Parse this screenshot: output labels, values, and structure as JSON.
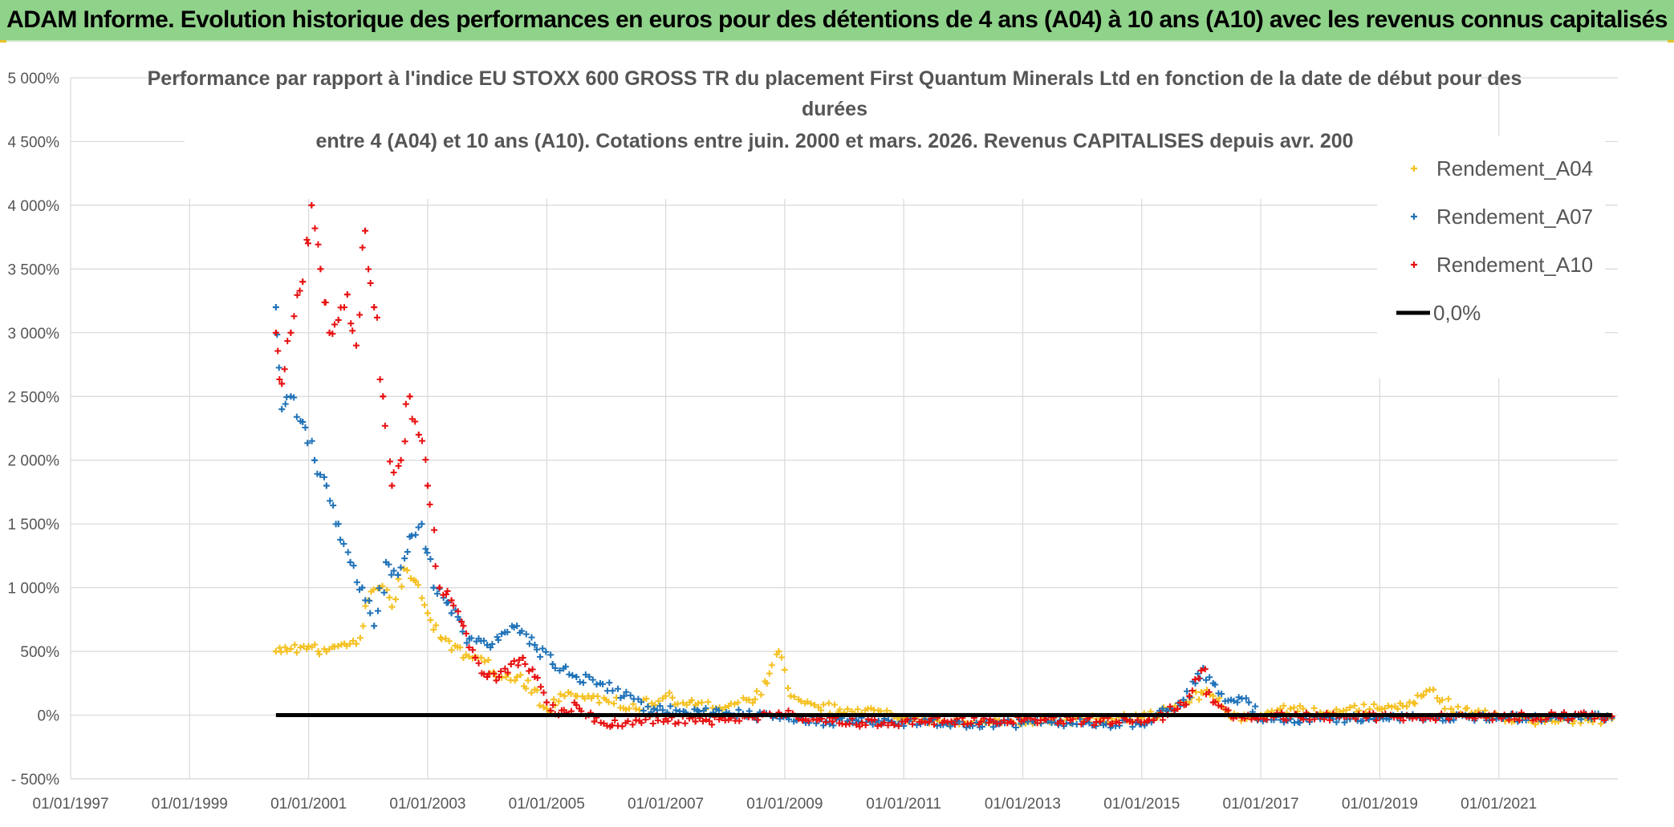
{
  "header": {
    "title": "ADAM Informe. Evolution historique des performances en euros pour des détentions de 4 ans (A04) à 10 ans (A10) avec les revenus connus capitalisés"
  },
  "chart_data": {
    "type": "scatter",
    "title_lines": [
      "Performance par rapport à l'indice EU STOXX 600 GROSS TR  du placement First Quantum Minerals Ltd en fonction de la date de début pour des",
      "durées",
      "entre 4 (A04) et 10 ans (A10). Cotations entre juin. 2000 et mars. 2026. Revenus CAPITALISES depuis avr. 200"
    ],
    "ylim": [
      -500,
      5000
    ],
    "xlim": [
      1997.0,
      2023.0
    ],
    "yticks": [
      {
        "value": 5000,
        "label": "5 000%"
      },
      {
        "value": 4500,
        "label": "4 500%"
      },
      {
        "value": 4000,
        "label": "4 000%"
      },
      {
        "value": 3500,
        "label": "3 500%"
      },
      {
        "value": 3000,
        "label": "3 000%"
      },
      {
        "value": 2500,
        "label": "2 500%"
      },
      {
        "value": 2000,
        "label": "2 000%"
      },
      {
        "value": 1500,
        "label": "1 500%"
      },
      {
        "value": 1000,
        "label": "1 000%"
      },
      {
        "value": 500,
        "label": "500%"
      },
      {
        "value": 0,
        "label": "0%"
      },
      {
        "value": -500,
        "label": "- 500%"
      }
    ],
    "xticks": [
      {
        "value": 1997,
        "label": "01/01/1997"
      },
      {
        "value": 1999,
        "label": "01/01/1999"
      },
      {
        "value": 2001,
        "label": "01/01/2001"
      },
      {
        "value": 2003,
        "label": "01/01/2003"
      },
      {
        "value": 2005,
        "label": "01/01/2005"
      },
      {
        "value": 2007,
        "label": "01/01/2007"
      },
      {
        "value": 2009,
        "label": "01/01/2009"
      },
      {
        "value": 2011,
        "label": "01/01/2011"
      },
      {
        "value": 2013,
        "label": "01/01/2013"
      },
      {
        "value": 2015,
        "label": "01/01/2015"
      },
      {
        "value": 2017,
        "label": "01/01/2017"
      },
      {
        "value": 2019,
        "label": "01/01/2019"
      },
      {
        "value": 2021,
        "label": "01/01/2021"
      }
    ],
    "legend": [
      {
        "name": "Rendement_A04",
        "color": "#f5c020",
        "kind": "marker"
      },
      {
        "name": "Rendement_A07",
        "color": "#1f72b8",
        "kind": "marker"
      },
      {
        "name": "Rendement_A10",
        "color": "#e81010",
        "kind": "marker"
      },
      {
        "name": "0,0%",
        "color": "#000000",
        "kind": "line"
      }
    ],
    "series": [
      {
        "name": "Rendement_A04",
        "color": "#f5c020",
        "x": [
          2000.45,
          2000.7,
          2001.0,
          2001.3,
          2001.6,
          2001.8,
          2002.0,
          2002.2,
          2002.4,
          2002.6,
          2002.8,
          2003.0,
          2003.3,
          2003.6,
          2003.9,
          2004.2,
          2004.5,
          2004.8,
          2005.0,
          2005.3,
          2005.7,
          2006.0,
          2006.5,
          2007.0,
          2007.5,
          2008.0,
          2008.4,
          2008.7,
          2008.9,
          2009.1,
          2009.5,
          2010.0,
          2010.5,
          2011.0,
          2011.5,
          2012.0,
          2012.5,
          2013.0,
          2013.5,
          2014.0,
          2014.5,
          2015.0,
          2015.3,
          2015.6,
          2015.8,
          2016.0,
          2016.2,
          2016.5,
          2017.0,
          2017.5,
          2018.0,
          2018.5,
          2019.0,
          2019.3,
          2019.5,
          2019.7,
          2019.9,
          2020.2,
          2020.6,
          2021.0,
          2021.5,
          2022.0,
          2022.5,
          2022.9
        ],
        "y": [
          500,
          520,
          540,
          500,
          560,
          560,
          900,
          1000,
          850,
          1150,
          1050,
          800,
          600,
          450,
          450,
          300,
          300,
          200,
          50,
          150,
          150,
          120,
          50,
          150,
          80,
          60,
          120,
          250,
          500,
          150,
          80,
          20,
          40,
          -20,
          -40,
          -50,
          -60,
          -40,
          -50,
          -30,
          -30,
          -20,
          20,
          50,
          100,
          180,
          150,
          -20,
          0,
          50,
          20,
          60,
          50,
          50,
          100,
          150,
          200,
          50,
          20,
          -20,
          -40,
          -50,
          -40,
          -30
        ]
      },
      {
        "name": "Rendement_A07",
        "color": "#1f72b8",
        "x": [
          2000.45,
          2000.55,
          2000.7,
          2000.9,
          2001.1,
          2001.3,
          2001.5,
          2001.7,
          2001.9,
          2002.1,
          2002.3,
          2002.5,
          2002.7,
          2002.9,
          2003.1,
          2003.4,
          2003.7,
          2004.0,
          2004.3,
          2004.5,
          2004.8,
          2005.1,
          2005.5,
          2005.9,
          2006.3,
          2006.8,
          2007.3,
          2007.8,
          2008.3,
          2008.8,
          2009.2,
          2009.7,
          2010.2,
          2010.8,
          2011.4,
          2012.0,
          2012.6,
          2013.2,
          2013.8,
          2014.4,
          2014.9,
          2015.2,
          2015.5,
          2015.7,
          2015.9,
          2016.0,
          2016.2,
          2016.5,
          2016.8,
          2017.0,
          2017.5,
          2018.0,
          2018.5,
          2019.0,
          2019.5,
          2020.0,
          2020.5,
          2021.0,
          2021.5,
          2022.0,
          2022.5,
          2022.9
        ],
        "y": [
          3200,
          2400,
          2500,
          2300,
          2000,
          1800,
          1500,
          1200,
          1000,
          700,
          1200,
          1100,
          1400,
          1500,
          1000,
          800,
          600,
          550,
          650,
          700,
          550,
          400,
          300,
          250,
          150,
          50,
          30,
          20,
          10,
          -20,
          -40,
          -50,
          -40,
          -50,
          -60,
          -70,
          -70,
          -60,
          -60,
          -70,
          -60,
          -40,
          50,
          120,
          250,
          350,
          250,
          120,
          100,
          -30,
          -30,
          -30,
          -30,
          -20,
          -20,
          -20,
          -20,
          -20,
          -20,
          -20,
          -20,
          -20
        ]
      },
      {
        "name": "Rendement_A10",
        "color": "#e81010",
        "x": [
          2000.45,
          2000.55,
          2000.7,
          2000.9,
          2001.05,
          2001.2,
          2001.35,
          2001.5,
          2001.65,
          2001.8,
          2001.95,
          2002.1,
          2002.25,
          2002.4,
          2002.55,
          2002.7,
          2002.85,
          2003.0,
          2003.2,
          2003.4,
          2003.6,
          2003.8,
          2004.0,
          2004.2,
          2004.4,
          2004.6,
          2004.8,
          2005.0,
          2005.2,
          2005.5,
          2005.8,
          2006.1,
          2006.5,
          2007.0,
          2007.5,
          2008.0,
          2008.5,
          2008.9,
          2009.3,
          2009.8,
          2010.3,
          2010.8,
          2011.3,
          2011.8,
          2012.3,
          2012.8,
          2013.3,
          2013.8,
          2014.3,
          2014.8,
          2015.2,
          2015.6,
          2015.8,
          2016.0,
          2016.2,
          2016.5,
          2017.0,
          2017.5,
          2018.0,
          2018.5,
          2019.0,
          2019.5,
          2020.0,
          2020.5,
          2021.0,
          2021.5,
          2022.0,
          2022.5,
          2022.9
        ],
        "y": [
          3000,
          2600,
          3000,
          3400,
          4000,
          3500,
          3000,
          3100,
          3300,
          2900,
          3800,
          3200,
          2500,
          1800,
          2000,
          2500,
          2200,
          1800,
          1000,
          900,
          700,
          450,
          300,
          300,
          400,
          450,
          300,
          100,
          0,
          80,
          -50,
          -80,
          -40,
          -30,
          -50,
          -40,
          -10,
          20,
          -40,
          -50,
          -60,
          -60,
          -50,
          -50,
          -50,
          -50,
          -40,
          -40,
          -50,
          -50,
          -40,
          50,
          150,
          350,
          100,
          -10,
          -10,
          -10,
          -10,
          -10,
          -10,
          -10,
          -10,
          -10,
          -10,
          -10,
          -10,
          -10,
          -10
        ]
      }
    ],
    "reference_line": {
      "label": "0,0%",
      "value": 0,
      "x_from": 2000.45,
      "x_to": 2022.9
    }
  }
}
